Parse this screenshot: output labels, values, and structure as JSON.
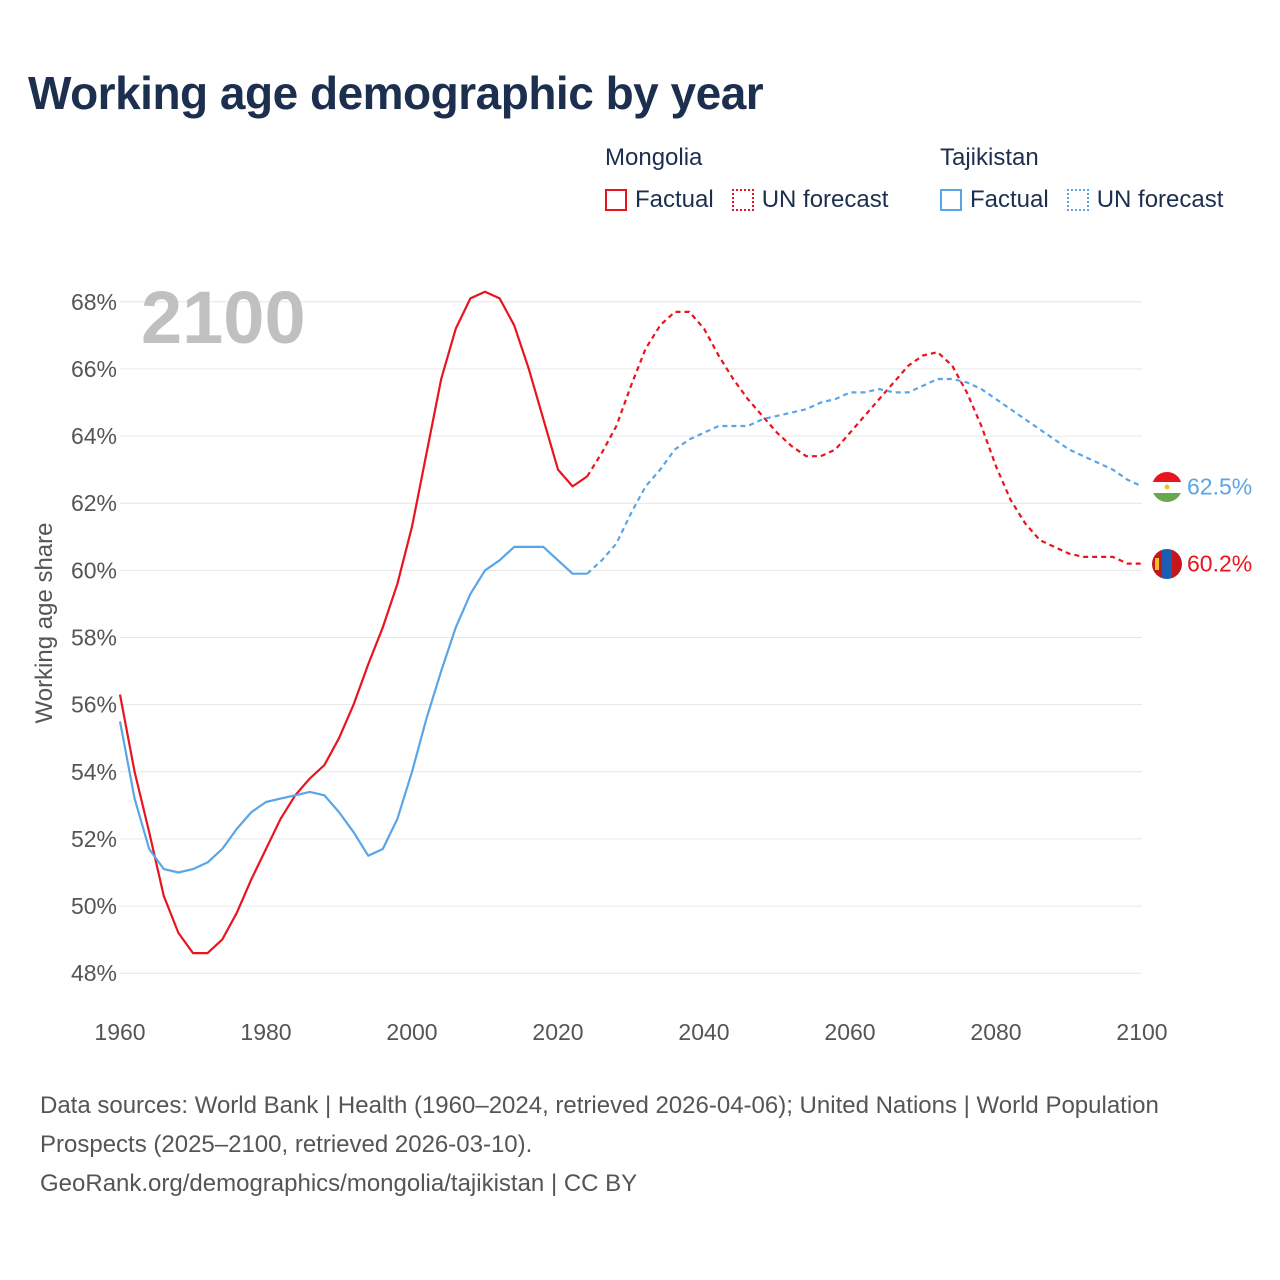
{
  "title": "Working age demographic by year",
  "legend": {
    "groups": [
      {
        "name": "Mongolia",
        "color": "#e8141e",
        "factual_label": "Factual",
        "forecast_label": "UN forecast"
      },
      {
        "name": "Tajikistan",
        "color": "#5aa5e6",
        "factual_label": "Factual",
        "forecast_label": "UN forecast"
      }
    ]
  },
  "year_watermark": "2100",
  "footer": {
    "sources": "Data sources: World Bank | Health (1960–2024, retrieved 2026-04-06); United Nations | World Population Prospects (2025–2100, retrieved 2026-03-10).",
    "link": "GeoRank.org/demographics/mongolia/tajikistan | CC BY"
  },
  "chart_data": {
    "type": "line",
    "title": "Working age demographic by year",
    "xlabel": "",
    "ylabel": "Working age share",
    "xlim": [
      1960,
      2100
    ],
    "ylim": [
      47.5,
      68.5
    ],
    "x_ticks": [
      1960,
      1980,
      2000,
      2020,
      2040,
      2060,
      2080,
      2100
    ],
    "y_ticks": [
      48,
      50,
      52,
      54,
      56,
      58,
      60,
      62,
      64,
      66,
      68
    ],
    "y_tick_labels": [
      "48%",
      "50%",
      "52%",
      "54%",
      "56%",
      "58%",
      "60%",
      "62%",
      "64%",
      "66%",
      "68%"
    ],
    "x_tick_labels": [
      "1960",
      "1980",
      "2000",
      "2020",
      "2040",
      "2060",
      "2080",
      "2100"
    ],
    "grid": true,
    "forecast_start": 2024,
    "series": [
      {
        "name": "Mongolia",
        "color": "#e8141e",
        "end_label": "60.2%",
        "points": [
          [
            1960,
            56.3
          ],
          [
            1962,
            54.0
          ],
          [
            1964,
            52.2
          ],
          [
            1966,
            50.3
          ],
          [
            1968,
            49.2
          ],
          [
            1970,
            48.6
          ],
          [
            1972,
            48.6
          ],
          [
            1974,
            49.0
          ],
          [
            1976,
            49.8
          ],
          [
            1978,
            50.8
          ],
          [
            1980,
            51.7
          ],
          [
            1982,
            52.6
          ],
          [
            1984,
            53.3
          ],
          [
            1986,
            53.8
          ],
          [
            1988,
            54.2
          ],
          [
            1990,
            55.0
          ],
          [
            1992,
            56.0
          ],
          [
            1994,
            57.2
          ],
          [
            1996,
            58.3
          ],
          [
            1998,
            59.6
          ],
          [
            2000,
            61.3
          ],
          [
            2002,
            63.5
          ],
          [
            2004,
            65.7
          ],
          [
            2006,
            67.2
          ],
          [
            2008,
            68.1
          ],
          [
            2010,
            68.3
          ],
          [
            2012,
            68.1
          ],
          [
            2014,
            67.3
          ],
          [
            2016,
            66.0
          ],
          [
            2018,
            64.5
          ],
          [
            2020,
            63.0
          ],
          [
            2022,
            62.5
          ],
          [
            2024,
            62.8
          ],
          [
            2026,
            63.5
          ],
          [
            2028,
            64.3
          ],
          [
            2030,
            65.5
          ],
          [
            2032,
            66.6
          ],
          [
            2034,
            67.3
          ],
          [
            2036,
            67.7
          ],
          [
            2038,
            67.7
          ],
          [
            2040,
            67.2
          ],
          [
            2042,
            66.4
          ],
          [
            2044,
            65.7
          ],
          [
            2046,
            65.1
          ],
          [
            2048,
            64.6
          ],
          [
            2050,
            64.1
          ],
          [
            2052,
            63.7
          ],
          [
            2054,
            63.4
          ],
          [
            2056,
            63.4
          ],
          [
            2058,
            63.6
          ],
          [
            2060,
            64.1
          ],
          [
            2062,
            64.6
          ],
          [
            2064,
            65.1
          ],
          [
            2066,
            65.6
          ],
          [
            2068,
            66.1
          ],
          [
            2070,
            66.4
          ],
          [
            2072,
            66.5
          ],
          [
            2074,
            66.1
          ],
          [
            2076,
            65.3
          ],
          [
            2078,
            64.3
          ],
          [
            2080,
            63.1
          ],
          [
            2082,
            62.1
          ],
          [
            2084,
            61.4
          ],
          [
            2086,
            60.9
          ],
          [
            2088,
            60.7
          ],
          [
            2090,
            60.5
          ],
          [
            2092,
            60.4
          ],
          [
            2094,
            60.4
          ],
          [
            2096,
            60.4
          ],
          [
            2098,
            60.2
          ],
          [
            2100,
            60.2
          ]
        ]
      },
      {
        "name": "Tajikistan",
        "color": "#5aa5e6",
        "end_label": "62.5%",
        "points": [
          [
            1960,
            55.5
          ],
          [
            1962,
            53.2
          ],
          [
            1964,
            51.7
          ],
          [
            1966,
            51.1
          ],
          [
            1968,
            51.0
          ],
          [
            1970,
            51.1
          ],
          [
            1972,
            51.3
          ],
          [
            1974,
            51.7
          ],
          [
            1976,
            52.3
          ],
          [
            1978,
            52.8
          ],
          [
            1980,
            53.1
          ],
          [
            1982,
            53.2
          ],
          [
            1984,
            53.3
          ],
          [
            1986,
            53.4
          ],
          [
            1988,
            53.3
          ],
          [
            1990,
            52.8
          ],
          [
            1992,
            52.2
          ],
          [
            1994,
            51.5
          ],
          [
            1996,
            51.7
          ],
          [
            1998,
            52.6
          ],
          [
            2000,
            54.0
          ],
          [
            2002,
            55.6
          ],
          [
            2004,
            57.0
          ],
          [
            2006,
            58.3
          ],
          [
            2008,
            59.3
          ],
          [
            2010,
            60.0
          ],
          [
            2012,
            60.3
          ],
          [
            2014,
            60.7
          ],
          [
            2016,
            60.7
          ],
          [
            2018,
            60.7
          ],
          [
            2020,
            60.3
          ],
          [
            2022,
            59.9
          ],
          [
            2024,
            59.9
          ],
          [
            2026,
            60.3
          ],
          [
            2028,
            60.8
          ],
          [
            2030,
            61.7
          ],
          [
            2032,
            62.5
          ],
          [
            2034,
            63.0
          ],
          [
            2036,
            63.6
          ],
          [
            2038,
            63.9
          ],
          [
            2040,
            64.1
          ],
          [
            2042,
            64.3
          ],
          [
            2044,
            64.3
          ],
          [
            2046,
            64.3
          ],
          [
            2048,
            64.5
          ],
          [
            2050,
            64.6
          ],
          [
            2052,
            64.7
          ],
          [
            2054,
            64.8
          ],
          [
            2056,
            65.0
          ],
          [
            2058,
            65.1
          ],
          [
            2060,
            65.3
          ],
          [
            2062,
            65.3
          ],
          [
            2064,
            65.4
          ],
          [
            2066,
            65.3
          ],
          [
            2068,
            65.3
          ],
          [
            2070,
            65.5
          ],
          [
            2072,
            65.7
          ],
          [
            2074,
            65.7
          ],
          [
            2076,
            65.6
          ],
          [
            2078,
            65.4
          ],
          [
            2080,
            65.1
          ],
          [
            2082,
            64.8
          ],
          [
            2084,
            64.5
          ],
          [
            2086,
            64.2
          ],
          [
            2088,
            63.9
          ],
          [
            2090,
            63.6
          ],
          [
            2092,
            63.4
          ],
          [
            2094,
            63.2
          ],
          [
            2096,
            63.0
          ],
          [
            2098,
            62.7
          ],
          [
            2100,
            62.5
          ]
        ]
      }
    ]
  }
}
